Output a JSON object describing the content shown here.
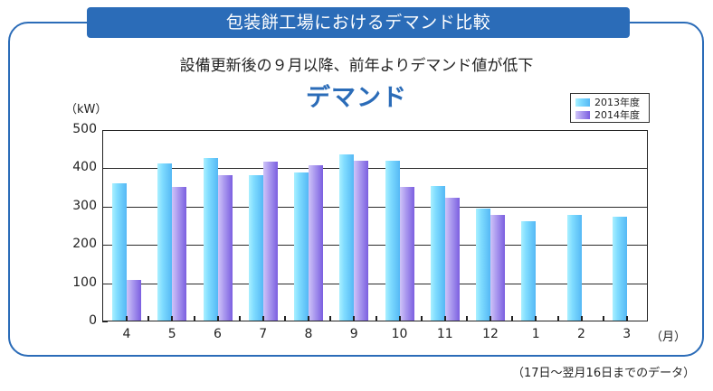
{
  "header": {
    "title": "包装餅工場におけるデマンド比較"
  },
  "subtitle": "設備更新後の９月以降、前年よりデマンド値が低下",
  "footnote": "（17日～翌月16日までのデータ）",
  "colors": {
    "frame": "#2b6cb8",
    "series_2013": "#66ccff",
    "series_2014": "#9a84ea",
    "title": "#2b6cb8"
  },
  "chart_data": {
    "type": "bar",
    "title": "デマンド",
    "xlabel": "（月）",
    "ylabel": "（kW）",
    "ylim": [
      0,
      500
    ],
    "yticks": [
      0,
      100,
      200,
      300,
      400,
      500
    ],
    "grid": true,
    "legend_position": "top-right",
    "categories": [
      "4",
      "5",
      "6",
      "7",
      "8",
      "9",
      "10",
      "11",
      "12",
      "1",
      "2",
      "3"
    ],
    "series": [
      {
        "name": "2013年度",
        "values": [
          360,
          412,
          427,
          381,
          389,
          436,
          419,
          354,
          296,
          263,
          278,
          273
        ]
      },
      {
        "name": "2014年度",
        "values": [
          108,
          351,
          383,
          417,
          407,
          419,
          351,
          322,
          279,
          null,
          null,
          null
        ]
      }
    ]
  }
}
